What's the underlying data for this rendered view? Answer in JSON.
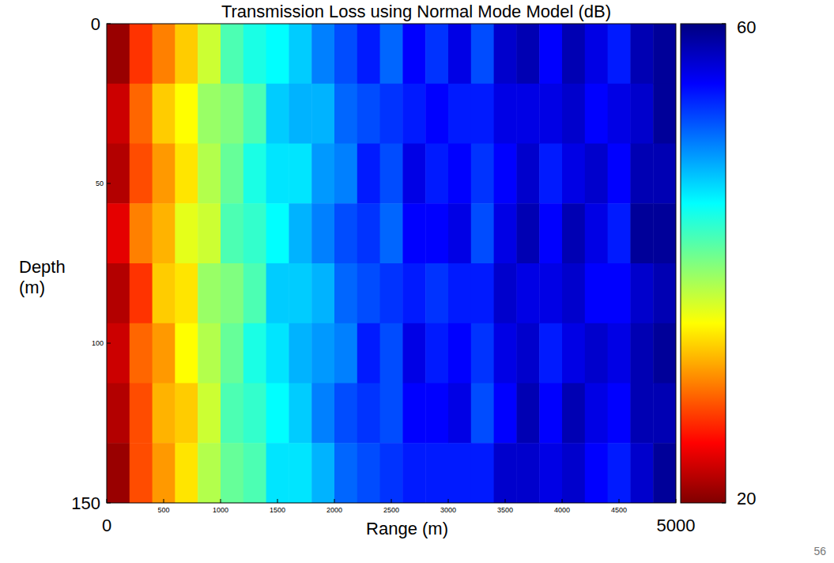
{
  "chart_data": {
    "type": "heatmap",
    "title": "Transmission Loss using Normal Mode Model (dB)",
    "x_label": "Range (m)",
    "y_label": "Depth (m)",
    "xlim": [
      0,
      5000
    ],
    "ylim": [
      150,
      0
    ],
    "xticks": [
      0,
      500,
      1000,
      1500,
      2000,
      2500,
      3000,
      3500,
      4000,
      4500,
      5000
    ],
    "yticks": [
      0,
      50,
      100,
      150
    ],
    "x_edges": [
      0,
      200,
      400,
      600,
      800,
      1000,
      1200,
      1400,
      1600,
      1800,
      2000,
      2200,
      2400,
      2600,
      2800,
      3000,
      3200,
      3400,
      3600,
      3800,
      4000,
      4200,
      4400,
      4600,
      4800,
      5000
    ],
    "y_edges": [
      0,
      18.75,
      37.5,
      56.25,
      75,
      93.75,
      112.5,
      131.25,
      150
    ],
    "cells": [
      [
        21,
        27,
        30,
        33,
        37,
        42,
        44,
        45,
        47,
        50,
        52,
        54,
        51,
        55,
        53,
        56,
        52,
        57,
        58,
        55,
        58,
        56,
        54,
        58,
        59
      ],
      [
        23,
        29,
        33,
        35,
        39,
        40,
        42,
        47,
        48,
        48,
        51,
        52,
        53,
        54,
        55,
        54,
        54,
        56,
        56,
        56,
        57,
        55,
        56,
        57,
        59
      ],
      [
        22,
        28,
        31,
        34,
        38,
        41,
        44,
        46,
        46,
        49,
        50,
        54,
        52,
        56,
        54,
        55,
        53,
        55,
        57,
        54,
        56,
        57,
        55,
        58,
        58
      ],
      [
        24,
        30,
        32,
        36,
        37,
        42,
        43,
        45,
        48,
        50,
        52,
        53,
        51,
        55,
        55,
        56,
        52,
        56,
        58,
        55,
        58,
        56,
        54,
        59,
        59
      ],
      [
        22,
        27,
        33,
        34,
        39,
        40,
        42,
        47,
        47,
        48,
        51,
        52,
        53,
        54,
        53,
        54,
        54,
        57,
        56,
        56,
        57,
        55,
        55,
        57,
        58
      ],
      [
        23,
        29,
        31,
        35,
        38,
        41,
        44,
        46,
        48,
        49,
        50,
        54,
        52,
        56,
        54,
        55,
        53,
        56,
        57,
        54,
        56,
        57,
        56,
        58,
        59
      ],
      [
        22,
        28,
        32,
        33,
        37,
        42,
        43,
        45,
        47,
        50,
        52,
        53,
        52,
        55,
        55,
        56,
        52,
        55,
        58,
        55,
        58,
        56,
        55,
        58,
        58
      ],
      [
        21,
        28,
        31,
        34,
        38,
        41,
        42,
        46,
        46,
        48,
        51,
        52,
        53,
        54,
        54,
        54,
        54,
        57,
        57,
        56,
        57,
        55,
        54,
        57,
        59
      ]
    ],
    "colorbar_range": [
      20,
      60
    ],
    "colorbar_ticks": [
      20,
      60
    ]
  },
  "page": {
    "number": "56"
  }
}
